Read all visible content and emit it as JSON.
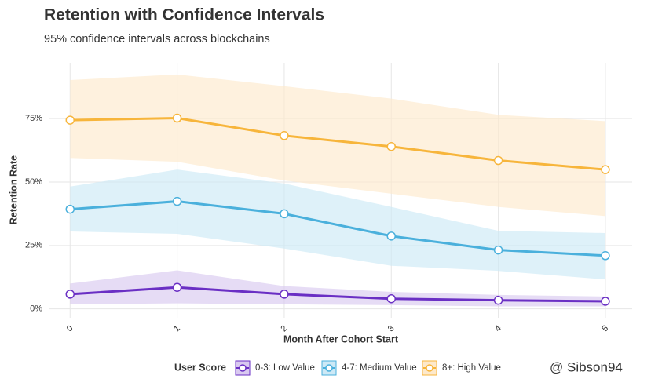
{
  "chart_data": {
    "type": "line",
    "title": "Retention with Confidence Intervals",
    "subtitle": "95% confidence intervals across blockchains",
    "x_label": "Month After Cohort Start",
    "y_label": "Retention Rate",
    "x": [
      0,
      1,
      2,
      3,
      4,
      5
    ],
    "xlim": [
      -0.2,
      5.25
    ],
    "xticks": [
      0,
      1,
      2,
      3,
      4,
      5
    ],
    "ylim": [
      -3.5,
      97
    ],
    "yticks": [
      {
        "value": 0,
        "label": "0%"
      },
      {
        "value": 25,
        "label": "25%"
      },
      {
        "value": 50,
        "label": "50%"
      },
      {
        "value": 75,
        "label": "75%"
      }
    ],
    "grid": true,
    "legend_title": "User Score",
    "legend_position": "bottom",
    "series": [
      {
        "name": "0-3: Low Value",
        "color": "#6a2fc4",
        "band_color": "#d9c9f0",
        "values": [
          5.8,
          8.5,
          5.8,
          4.0,
          3.4,
          3.0
        ],
        "lower": [
          1.8,
          2.2,
          1.8,
          1.5,
          1.0,
          1.0
        ],
        "upper": [
          10,
          15.2,
          9,
          6.7,
          5.5,
          4.9
        ]
      },
      {
        "name": "4-7: Medium Value",
        "color": "#4ab0dc",
        "band_color": "#cde9f6",
        "values": [
          39.3,
          42.4,
          37.5,
          28.7,
          23.2,
          21
        ],
        "lower": [
          30.5,
          29.6,
          23.8,
          17,
          15,
          11.6
        ],
        "upper": [
          48.2,
          54.9,
          49.4,
          40.2,
          30.8,
          29.9
        ]
      },
      {
        "name": "8+: High Value",
        "color": "#f7b53b",
        "band_color": "#fde9cc",
        "values": [
          74.4,
          75.2,
          68.3,
          64,
          58.5,
          54.9
        ],
        "lower": [
          59.5,
          58,
          50.6,
          45.4,
          40.2,
          36.6
        ],
        "upper": [
          90.2,
          92.4,
          87.8,
          82.9,
          76.5,
          74
        ]
      }
    ],
    "watermark": "@ Sibson94"
  }
}
